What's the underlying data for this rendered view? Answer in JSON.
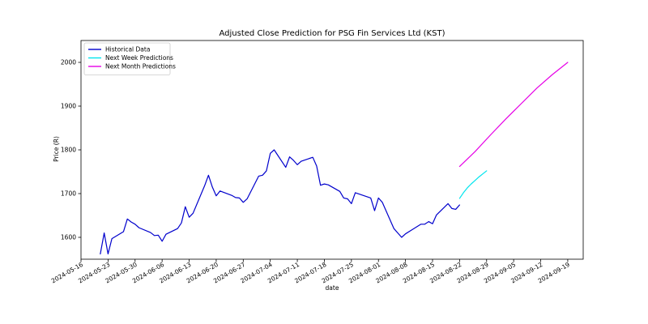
{
  "chart_data": {
    "type": "line",
    "title": "Adjusted Close Prediction for PSG Fin Services Ltd (KST)",
    "xlabel": "date",
    "ylabel": "Price (R)",
    "xlim": [
      "2024-05-16",
      "2024-09-23"
    ],
    "ylim": [
      1550,
      2050
    ],
    "x_ticks": [
      "2024-05-16",
      "2024-05-23",
      "2024-05-30",
      "2024-06-06",
      "2024-06-13",
      "2024-06-20",
      "2024-06-27",
      "2024-07-04",
      "2024-07-11",
      "2024-07-18",
      "2024-07-25",
      "2024-08-01",
      "2024-08-08",
      "2024-08-15",
      "2024-08-22",
      "2024-08-29",
      "2024-09-05",
      "2024-09-12",
      "2024-09-19"
    ],
    "y_ticks": [
      1600,
      1700,
      1800,
      1900,
      2000
    ],
    "grid": false,
    "legend_position": "top-left",
    "series": [
      {
        "name": "Historical Data",
        "color": "#0000cc",
        "x": [
          "2024-05-21",
          "2024-05-22",
          "2024-05-23",
          "2024-05-24",
          "2024-05-27",
          "2024-05-28",
          "2024-05-29",
          "2024-05-30",
          "2024-05-31",
          "2024-06-03",
          "2024-06-04",
          "2024-06-05",
          "2024-06-06",
          "2024-06-07",
          "2024-06-10",
          "2024-06-11",
          "2024-06-12",
          "2024-06-13",
          "2024-06-14",
          "2024-06-17",
          "2024-06-18",
          "2024-06-19",
          "2024-06-20",
          "2024-06-21",
          "2024-06-24",
          "2024-06-25",
          "2024-06-26",
          "2024-06-27",
          "2024-06-28",
          "2024-07-01",
          "2024-07-02",
          "2024-07-03",
          "2024-07-04",
          "2024-07-05",
          "2024-07-08",
          "2024-07-09",
          "2024-07-10",
          "2024-07-11",
          "2024-07-12",
          "2024-07-15",
          "2024-07-16",
          "2024-07-17",
          "2024-07-18",
          "2024-07-19",
          "2024-07-22",
          "2024-07-23",
          "2024-07-24",
          "2024-07-25",
          "2024-07-26",
          "2024-07-29",
          "2024-07-30",
          "2024-07-31",
          "2024-08-01",
          "2024-08-02",
          "2024-08-05",
          "2024-08-06",
          "2024-08-07",
          "2024-08-08",
          "2024-08-12",
          "2024-08-13",
          "2024-08-14",
          "2024-08-15",
          "2024-08-16",
          "2024-08-19",
          "2024-08-20",
          "2024-08-21",
          "2024-08-22"
        ],
        "values": [
          1562,
          1610,
          1562,
          1597,
          1613,
          1642,
          1635,
          1630,
          1622,
          1611,
          1604,
          1605,
          1591,
          1607,
          1620,
          1633,
          1670,
          1646,
          1655,
          1718,
          1742,
          1715,
          1695,
          1706,
          1696,
          1691,
          1690,
          1680,
          1688,
          1740,
          1742,
          1752,
          1792,
          1800,
          1760,
          1784,
          1776,
          1766,
          1774,
          1783,
          1763,
          1719,
          1722,
          1720,
          1705,
          1690,
          1688,
          1677,
          1702,
          1693,
          1690,
          1661,
          1690,
          1680,
          1620,
          1610,
          1600,
          1608,
          1630,
          1630,
          1636,
          1631,
          1651,
          1677,
          1666,
          1664,
          1674
        ]
      },
      {
        "name": "Next Week Predictions",
        "color": "#00e5ee",
        "x": [
          "2024-08-22",
          "2024-08-23",
          "2024-08-24",
          "2024-08-25",
          "2024-08-26",
          "2024-08-27",
          "2024-08-28",
          "2024-08-29"
        ],
        "values": [
          1689,
          1702,
          1713,
          1722,
          1730,
          1738,
          1745,
          1752
        ]
      },
      {
        "name": "Next Month Predictions",
        "color": "#e600e6",
        "x": [
          "2024-08-22",
          "2024-08-26",
          "2024-08-30",
          "2024-09-03",
          "2024-09-07",
          "2024-09-11",
          "2024-09-15",
          "2024-09-19"
        ],
        "values": [
          1762,
          1796,
          1834,
          1871,
          1906,
          1941,
          1972,
          2000
        ]
      }
    ]
  }
}
